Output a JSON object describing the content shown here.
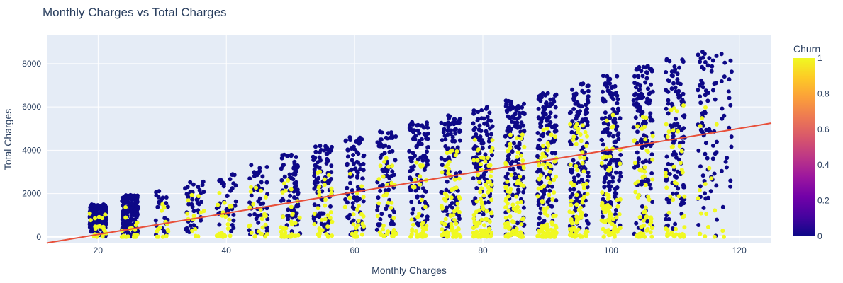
{
  "chart_data": {
    "type": "scatter",
    "title": "Monthly Charges vs Total Charges",
    "xlabel": "Monthly Charges",
    "ylabel": "Total Charges",
    "xlim": [
      12,
      125
    ],
    "ylim": [
      -300,
      9300
    ],
    "x_ticks": [
      20,
      40,
      60,
      80,
      100,
      120
    ],
    "y_ticks": [
      0,
      2000,
      4000,
      6000,
      8000
    ],
    "grid": true,
    "colorbar": {
      "title": "Churn",
      "range": [
        0,
        1
      ],
      "ticks": [
        0,
        0.2,
        0.4,
        0.6,
        0.8,
        1
      ],
      "tick_labels": [
        "0",
        "0.2",
        "0.4",
        "0.6",
        "0.8",
        "1"
      ],
      "colors": [
        "#0d0887",
        "#46039f",
        "#7201a8",
        "#9c179e",
        "#bd3786",
        "#d8576b",
        "#ed7953",
        "#fb9f3a",
        "#fdca26",
        "#f0f921"
      ]
    },
    "trendline": {
      "x": [
        12,
        125
      ],
      "y": [
        -280,
        5250
      ],
      "color": "#e8503a"
    },
    "point_clusters": [
      {
        "x_center": 20,
        "x_spread": 1.3,
        "y_max": 1500,
        "count": 200,
        "churn_rate": 0.12
      },
      {
        "x_center": 25,
        "x_spread": 1.3,
        "y_max": 1950,
        "count": 180,
        "churn_rate": 0.15
      },
      {
        "x_center": 30,
        "x_spread": 1.0,
        "y_max": 2200,
        "count": 40,
        "churn_rate": 0.3
      },
      {
        "x_center": 35,
        "x_spread": 1.5,
        "y_max": 2600,
        "count": 55,
        "churn_rate": 0.3
      },
      {
        "x_center": 40,
        "x_spread": 1.5,
        "y_max": 2900,
        "count": 60,
        "churn_rate": 0.3
      },
      {
        "x_center": 45,
        "x_spread": 1.5,
        "y_max": 3400,
        "count": 75,
        "churn_rate": 0.3
      },
      {
        "x_center": 50,
        "x_spread": 1.5,
        "y_max": 3800,
        "count": 110,
        "churn_rate": 0.3
      },
      {
        "x_center": 55,
        "x_spread": 1.5,
        "y_max": 4200,
        "count": 120,
        "churn_rate": 0.28
      },
      {
        "x_center": 60,
        "x_spread": 1.5,
        "y_max": 4600,
        "count": 110,
        "churn_rate": 0.28
      },
      {
        "x_center": 65,
        "x_spread": 1.5,
        "y_max": 4900,
        "count": 110,
        "churn_rate": 0.26
      },
      {
        "x_center": 70,
        "x_spread": 1.5,
        "y_max": 5300,
        "count": 140,
        "churn_rate": 0.28
      },
      {
        "x_center": 75,
        "x_spread": 1.5,
        "y_max": 5600,
        "count": 170,
        "churn_rate": 0.35
      },
      {
        "x_center": 80,
        "x_spread": 1.5,
        "y_max": 6000,
        "count": 210,
        "churn_rate": 0.4
      },
      {
        "x_center": 85,
        "x_spread": 1.5,
        "y_max": 6300,
        "count": 220,
        "churn_rate": 0.4
      },
      {
        "x_center": 90,
        "x_spread": 1.5,
        "y_max": 6700,
        "count": 230,
        "churn_rate": 0.38
      },
      {
        "x_center": 95,
        "x_spread": 1.5,
        "y_max": 7100,
        "count": 220,
        "churn_rate": 0.36
      },
      {
        "x_center": 100,
        "x_spread": 1.5,
        "y_max": 7500,
        "count": 220,
        "churn_rate": 0.33
      },
      {
        "x_center": 105,
        "x_spread": 1.5,
        "y_max": 7900,
        "count": 200,
        "churn_rate": 0.3
      },
      {
        "x_center": 110,
        "x_spread": 1.5,
        "y_max": 8200,
        "count": 170,
        "churn_rate": 0.28
      },
      {
        "x_center": 115,
        "x_spread": 1.5,
        "y_max": 8600,
        "count": 90,
        "churn_rate": 0.22
      },
      {
        "x_center": 118,
        "x_spread": 0.8,
        "y_max": 8700,
        "count": 25,
        "churn_rate": 0.15
      }
    ]
  }
}
